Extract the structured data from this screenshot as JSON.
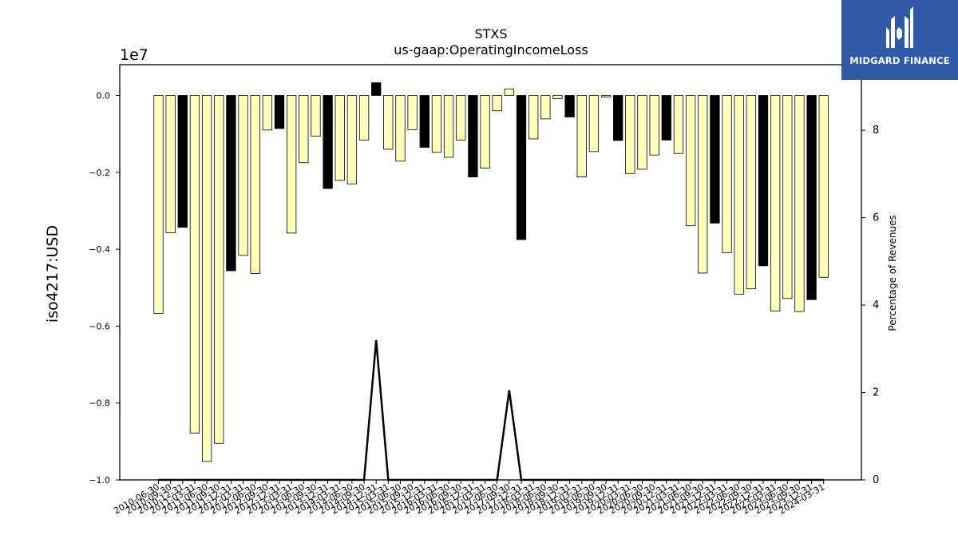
{
  "chart_data": {
    "type": "bar",
    "title": "STXS",
    "subtitle": "us-gaap:OperatingIncomeLoss",
    "ylabel": "iso4217:USD",
    "y2label": "Percentage of Revenues",
    "y_offset_label": "1e7",
    "ylim": [
      -1.0,
      0.08
    ],
    "y_scale": 10000000,
    "y2lim": [
      0,
      9.5
    ],
    "yticks": [
      "0.0",
      "−0.2",
      "−0.4",
      "−0.6",
      "−0.8",
      "−1.0"
    ],
    "ytick_values": [
      0.0,
      -0.2,
      -0.4,
      -0.6,
      -0.8,
      -1.0
    ],
    "y2ticks": [
      "0",
      "2",
      "4",
      "6",
      "8"
    ],
    "y2tick_values": [
      0,
      2,
      4,
      6,
      8
    ],
    "grid": false,
    "categories": [
      "2010-06-30",
      "2010-09-30",
      "2010-12-31",
      "2011-03-31",
      "2011-06-30",
      "2011-09-30",
      "2011-12-31",
      "2012-03-31",
      "2012-06-30",
      "2012-09-30",
      "2012-12-31",
      "2013-03-31",
      "2013-06-30",
      "2013-09-30",
      "2013-12-31",
      "2014-03-31",
      "2014-06-30",
      "2014-09-30",
      "2014-12-31",
      "2015-03-31",
      "2015-06-30",
      "2015-09-30",
      "2015-12-31",
      "2016-03-31",
      "2016-06-30",
      "2016-09-30",
      "2016-12-31",
      "2017-03-31",
      "2017-06-30",
      "2017-09-30",
      "2017-12-31",
      "2018-03-31",
      "2018-06-30",
      "2018-09-30",
      "2018-12-31",
      "2019-03-31",
      "2019-06-30",
      "2019-09-30",
      "2019-12-31",
      "2020-03-31",
      "2020-06-30",
      "2020-09-30",
      "2020-12-31",
      "2021-03-31",
      "2021-06-30",
      "2021-09-30",
      "2021-12-31",
      "2022-03-31",
      "2022-06-30",
      "2022-09-30",
      "2022-12-31",
      "2023-03-31",
      "2023-06-30",
      "2023-09-30",
      "2023-12-31",
      "2024-03-31"
    ],
    "values": [
      -0.567,
      -0.357,
      -0.343,
      -0.878,
      -0.952,
      -0.905,
      -0.456,
      -0.416,
      -0.463,
      -0.09,
      -0.086,
      -0.358,
      -0.175,
      -0.106,
      -0.242,
      -0.221,
      -0.23,
      -0.116,
      0.033,
      -0.14,
      -0.171,
      -0.089,
      -0.135,
      -0.148,
      -0.161,
      -0.116,
      -0.212,
      -0.189,
      -0.04,
      0.017,
      -0.375,
      -0.113,
      -0.061,
      -0.008,
      -0.056,
      -0.212,
      -0.146,
      -0.004,
      -0.117,
      -0.203,
      -0.192,
      -0.155,
      -0.116,
      -0.151,
      -0.339,
      -0.462,
      -0.332,
      -0.409,
      -0.517,
      -0.503,
      -0.443,
      -0.561,
      -0.528,
      -0.562,
      -0.531,
      -0.473
    ],
    "colors": [
      "#ffffbb",
      "#ffffbb",
      "#000000",
      "#ffffbb",
      "#ffffbb",
      "#ffffbb",
      "#000000",
      "#ffffbb",
      "#ffffbb",
      "#ffffbb",
      "#000000",
      "#ffffbb",
      "#ffffbb",
      "#ffffbb",
      "#000000",
      "#ffffbb",
      "#ffffbb",
      "#ffffbb",
      "#000000",
      "#ffffbb",
      "#ffffbb",
      "#ffffbb",
      "#000000",
      "#ffffbb",
      "#ffffbb",
      "#ffffbb",
      "#000000",
      "#ffffbb",
      "#ffffbb",
      "#ffffbb",
      "#000000",
      "#ffffbb",
      "#ffffbb",
      "#ffffbb",
      "#000000",
      "#ffffbb",
      "#ffffbb",
      "#ffffbb",
      "#000000",
      "#ffffbb",
      "#ffffbb",
      "#ffffbb",
      "#000000",
      "#ffffbb",
      "#ffffbb",
      "#ffffbb",
      "#000000",
      "#ffffbb",
      "#ffffbb",
      "#ffffbb",
      "#000000",
      "#ffffbb",
      "#ffffbb",
      "#ffffbb",
      "#000000",
      "#ffffbb"
    ],
    "line_series": {
      "axis": "right",
      "values": [
        0,
        0,
        0,
        0,
        0,
        0,
        0,
        0,
        0,
        0,
        0,
        0,
        0,
        0,
        0,
        0,
        0,
        0,
        3.2,
        0,
        0,
        0,
        0,
        0,
        0,
        0,
        0,
        0,
        0,
        2.05,
        0,
        0,
        0,
        0,
        0,
        0,
        0,
        0,
        0,
        0,
        0,
        0,
        0,
        0,
        0,
        0,
        0,
        0,
        0,
        0,
        0,
        0,
        0,
        0,
        0,
        0
      ]
    }
  },
  "logo": {
    "text": "MIDGARD FINANCE",
    "brand_color": "#2f5aa8"
  }
}
